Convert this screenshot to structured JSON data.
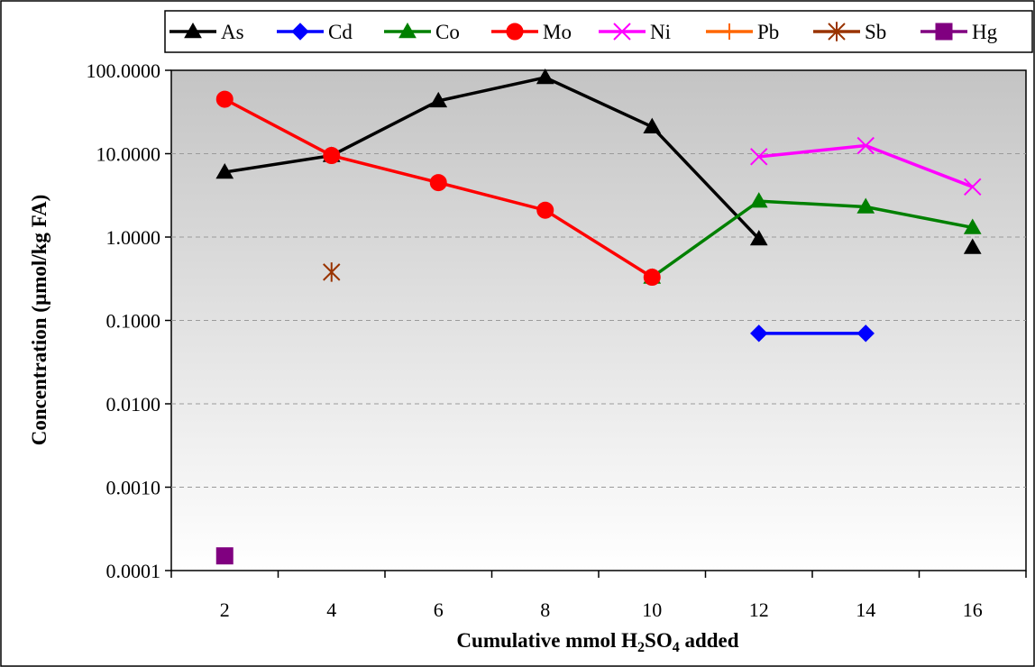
{
  "chart_data": {
    "type": "line",
    "title": "",
    "xlabel": {
      "main": "Cumulative mmol H",
      "sub1": "2",
      "mid": "SO",
      "sub2": "4",
      "tail": " added"
    },
    "ylabel": "Concentration (µmol/kg FA)",
    "x_categories": [
      "2",
      "4",
      "6",
      "8",
      "10",
      "12",
      "14",
      "16"
    ],
    "y_scale": "log",
    "ylim": [
      0.0001,
      100
    ],
    "y_tick_labels": [
      "100.0000",
      "10.0000",
      "1.0000",
      "0.1000",
      "0.0100",
      "0.0010",
      "0.0001"
    ],
    "y_tick_values": [
      100,
      10,
      1,
      0.1,
      0.01,
      0.001,
      0.0001
    ],
    "grid": "horizontal dashed",
    "legend_position": "top",
    "series": [
      {
        "name": "As",
        "color": "#000000",
        "marker": "triangle",
        "line": true,
        "points": [
          [
            2,
            6.0
          ],
          [
            4,
            9.5
          ],
          [
            6,
            43
          ],
          [
            8,
            82
          ],
          [
            10,
            21
          ],
          [
            12,
            0.95
          ],
          [
            16,
            0.75
          ]
        ],
        "segments": [
          [
            0,
            5
          ]
        ]
      },
      {
        "name": "Cd",
        "color": "#0000FF",
        "marker": "diamond",
        "line": true,
        "points": [
          [
            12,
            0.07
          ],
          [
            14,
            0.07
          ]
        ],
        "segments": [
          [
            0,
            1
          ]
        ]
      },
      {
        "name": "Co",
        "color": "#008000",
        "marker": "triangle",
        "line": true,
        "points": [
          [
            10,
            0.33
          ],
          [
            12,
            2.7
          ],
          [
            14,
            2.3
          ],
          [
            16,
            1.3
          ]
        ],
        "segments": [
          [
            0,
            3
          ]
        ]
      },
      {
        "name": "Mo",
        "color": "#FF0000",
        "marker": "circle",
        "line": true,
        "points": [
          [
            2,
            45
          ],
          [
            4,
            9.5
          ],
          [
            6,
            4.5
          ],
          [
            8,
            2.1
          ],
          [
            10,
            0.33
          ]
        ],
        "segments": [
          [
            0,
            4
          ]
        ]
      },
      {
        "name": "Ni",
        "color": "#FF00FF",
        "marker": "x",
        "line": true,
        "points": [
          [
            12,
            9.2
          ],
          [
            14,
            12.5
          ],
          [
            16,
            4.0
          ]
        ],
        "segments": [
          [
            0,
            2
          ]
        ]
      },
      {
        "name": "Pb",
        "color": "#FF6600",
        "marker": "plus",
        "line": true,
        "points": [],
        "segments": []
      },
      {
        "name": "Sb",
        "color": "#993300",
        "marker": "star",
        "line": true,
        "points": [
          [
            4,
            0.38
          ]
        ],
        "segments": []
      },
      {
        "name": "Hg",
        "color": "#800080",
        "marker": "square",
        "line": true,
        "points": [
          [
            2,
            0.00015
          ]
        ],
        "segments": []
      }
    ]
  }
}
